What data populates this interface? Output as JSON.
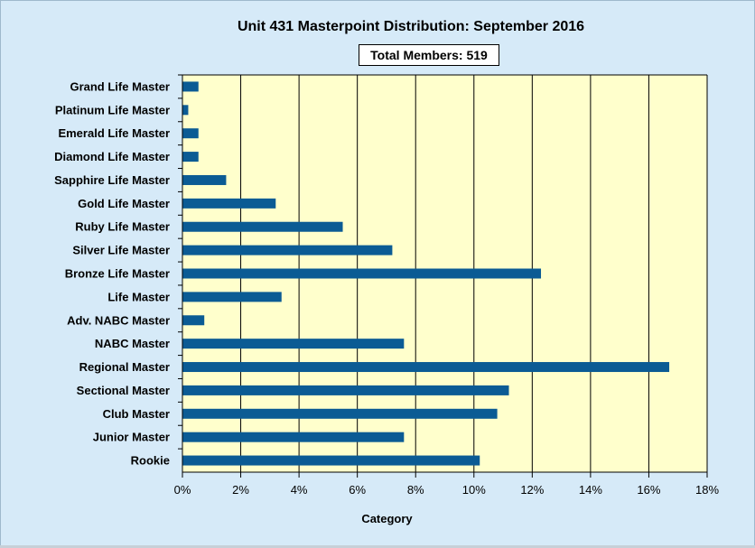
{
  "chart_data": {
    "type": "bar",
    "orientation": "horizontal",
    "title": "Unit 431 Masterpoint Distribution: September 2016",
    "subtitle": "Total Members: 519",
    "xlabel": "Category",
    "ylabel": "",
    "xlim": [
      0,
      18
    ],
    "x_ticks": [
      "0%",
      "2%",
      "4%",
      "6%",
      "8%",
      "10%",
      "12%",
      "14%",
      "16%",
      "18%"
    ],
    "unit": "%",
    "grid": "vertical",
    "legend": "none",
    "categories": [
      "Grand Life Master",
      "Platinum Life Master",
      "Emerald Life Master",
      "Diamond Life Master",
      "Sapphire Life Master",
      "Gold Life Master",
      "Ruby Life Master",
      "Silver Life Master",
      "Bronze Life Master",
      "Life Master",
      "Adv. NABC Master",
      "NABC Master",
      "Regional Master",
      "Sectional Master",
      "Club Master",
      "Junior Master",
      "Rookie"
    ],
    "values": [
      0.55,
      0.2,
      0.55,
      0.55,
      1.5,
      3.2,
      5.5,
      7.2,
      12.3,
      3.4,
      0.75,
      7.6,
      16.7,
      11.2,
      10.8,
      7.6,
      10.2
    ]
  },
  "colors": {
    "bar": "#0b5b94",
    "plot_background": "#ffffcc",
    "frame_background": "#d6eaf8"
  }
}
